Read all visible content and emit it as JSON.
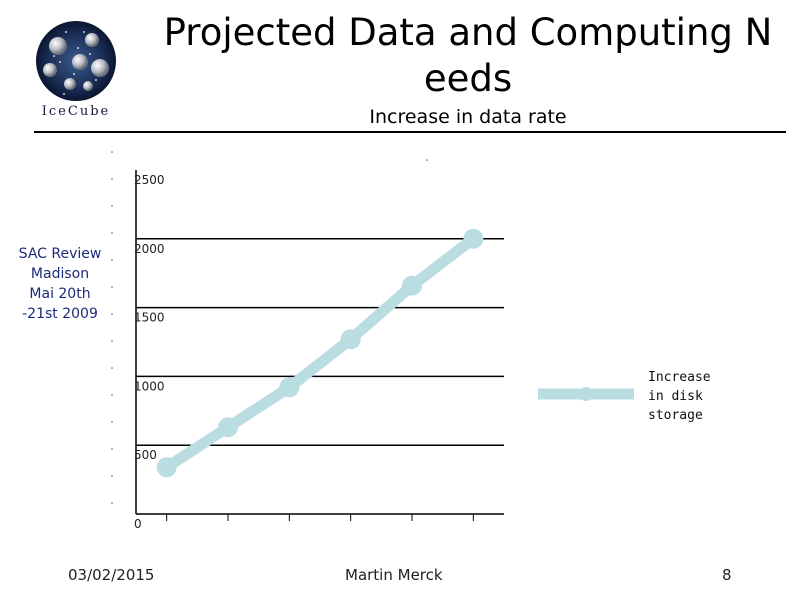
{
  "logo": {
    "text": "IceCube"
  },
  "title_lines": [
    "Projected Data and Computing N",
    "eeds"
  ],
  "subtitle": "Increase in data rate",
  "side_note": [
    "SAC Review",
    "Madison",
    "Mai 20th",
    "-21st  2009"
  ],
  "footer": {
    "date": "03/02/2015",
    "author": "Martin Merck",
    "page": "8"
  },
  "colors": {
    "series": "#b9dde1",
    "axis": "#000000",
    "side_note": "#1c2b7a"
  },
  "chart_data": {
    "type": "line",
    "title": "",
    "xlabel": "",
    "ylabel": "",
    "ylim": [
      0,
      2500
    ],
    "yticks": [
      "0",
      "500",
      "1000",
      "1500",
      "2000",
      "2500"
    ],
    "y_tick_values": [
      0,
      500,
      1000,
      1500,
      2000,
      2500
    ],
    "grid": true,
    "legend_position": "right",
    "series": [
      {
        "name": "Increase in disk storage",
        "values": [
          340,
          630,
          920,
          1270,
          1660,
          2000
        ]
      }
    ]
  }
}
